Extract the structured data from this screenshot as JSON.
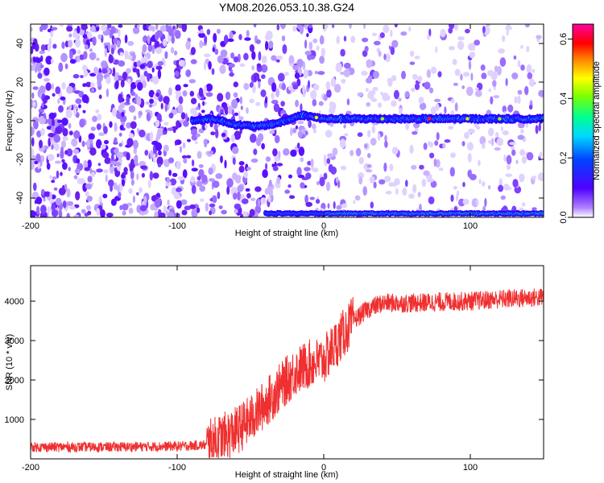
{
  "title": "YM08.2026.053.10.38.G24",
  "chart_data": [
    {
      "type": "heatmap",
      "xlabel": "Height of straight line (km)",
      "ylabel": "Frequency (Hz)",
      "xlim": [
        -200,
        150
      ],
      "ylim": [
        -50,
        50
      ],
      "xticks": [
        {
          "v": -200,
          "label": "-200"
        },
        {
          "v": -100,
          "label": "-100"
        },
        {
          "v": 0,
          "label": "0"
        },
        {
          "v": 100,
          "label": "100"
        }
      ],
      "yticks": [
        {
          "v": -40,
          "label": "-40"
        },
        {
          "v": -20,
          "label": "-20"
        },
        {
          "v": 0,
          "label": "0"
        },
        {
          "v": 20,
          "label": "20"
        },
        {
          "v": 40,
          "label": "40"
        }
      ],
      "colorbar": {
        "label": "Normalized spectral amplitude",
        "range": [
          0,
          0.65
        ],
        "ticks": [
          {
            "v": 0.0,
            "label": "0.0"
          },
          {
            "v": 0.2,
            "label": "0.2"
          },
          {
            "v": 0.4,
            "label": "0.4"
          },
          {
            "v": 0.6,
            "label": "0.6"
          }
        ]
      },
      "ridge": [
        {
          "x": -90,
          "y": 0
        },
        {
          "x": -75,
          "y": 1
        },
        {
          "x": -60,
          "y": -2
        },
        {
          "x": -45,
          "y": -3
        },
        {
          "x": -30,
          "y": -1
        },
        {
          "x": -15,
          "y": 3
        },
        {
          "x": 0,
          "y": 1
        },
        {
          "x": 50,
          "y": 1
        },
        {
          "x": 100,
          "y": 1
        },
        {
          "x": 150,
          "y": 1
        }
      ],
      "edge_line": {
        "y": -48,
        "x_start": -40,
        "x_end": 150
      }
    },
    {
      "type": "line",
      "xlabel": "Height of straight line (km)",
      "ylabel": "SNR (10 * v/v)",
      "xlim": [
        -200,
        150
      ],
      "ylim": [
        0,
        4900
      ],
      "xticks": [
        {
          "v": -200,
          "label": "-200"
        },
        {
          "v": -100,
          "label": "-100"
        },
        {
          "v": 0,
          "label": "0"
        },
        {
          "v": 100,
          "label": "100"
        }
      ],
      "yticks": [
        {
          "v": 1000,
          "label": "1000"
        },
        {
          "v": 2000,
          "label": "2000"
        },
        {
          "v": 3000,
          "label": "3000"
        },
        {
          "v": 4000,
          "label": "4000"
        }
      ],
      "color": "#f03030",
      "series": [
        {
          "name": "SNR",
          "x": [
            -200,
            -150,
            -100,
            -80,
            -60,
            -50,
            -40,
            -30,
            -20,
            -10,
            0,
            10,
            20,
            30,
            40,
            60,
            80,
            100,
            120,
            150
          ],
          "y": [
            300,
            300,
            320,
            350,
            700,
            1000,
            1400,
            1800,
            2200,
            2400,
            2500,
            3000,
            3500,
            3800,
            3950,
            3950,
            3980,
            4000,
            4050,
            4100
          ]
        }
      ]
    }
  ]
}
